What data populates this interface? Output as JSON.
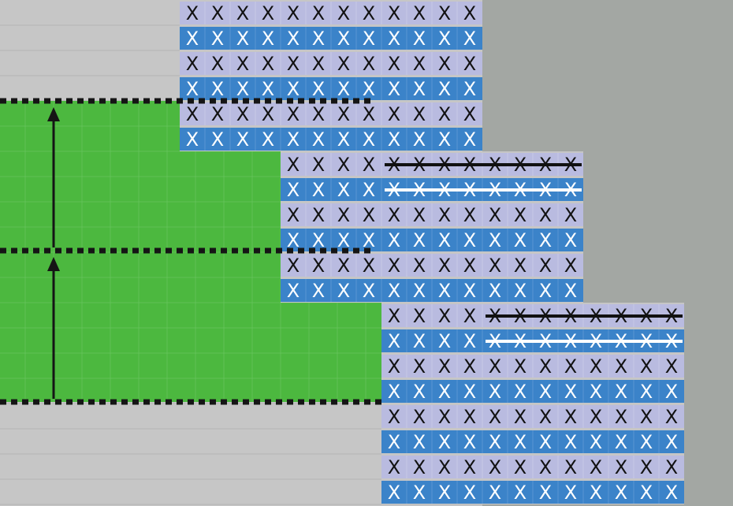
{
  "diagram": {
    "cell_glyph": "X",
    "colors": {
      "background_light": "#c6c6c6",
      "background_dark": "#a3a7a3",
      "green_region": "#4cb83f",
      "row_light": "#b9bbe0",
      "row_dark": "#3b83c9",
      "glyph_on_light": "#111111",
      "glyph_on_dark": "#ffffff",
      "dashed_line": "#151515",
      "arrow": "#151515"
    },
    "blocks": [
      {
        "name": "block-1",
        "rows": 6,
        "cols": 12,
        "struck_rows": [],
        "struck_from_col": null
      },
      {
        "name": "block-2",
        "rows": 6,
        "cols": 12,
        "struck_rows": [
          0,
          1
        ],
        "struck_from_col": 4
      },
      {
        "name": "block-3",
        "rows": 8,
        "cols": 12,
        "struck_rows": [
          0,
          1
        ],
        "struck_from_col": 4
      }
    ],
    "guides": {
      "dashed_lines": 3,
      "arrows": 2
    }
  }
}
